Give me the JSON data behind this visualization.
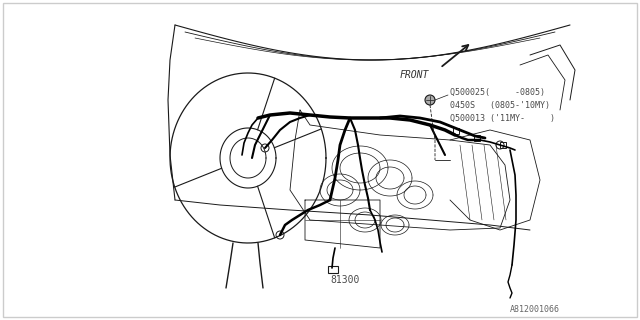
{
  "background_color": "#ffffff",
  "fig_width": 6.4,
  "fig_height": 3.2,
  "dpi": 100,
  "labels": {
    "front": "FRONT",
    "part1": "Q500025(     -0805)",
    "part2": "0450S   (0805-'10MY)",
    "part3": "Q500013 ('11MY-     )",
    "part4": "81300",
    "diagram_id": "A812001066"
  },
  "line_color": "#1a1a1a",
  "text_color": "#4a4a4a",
  "harness_color": "#000000"
}
